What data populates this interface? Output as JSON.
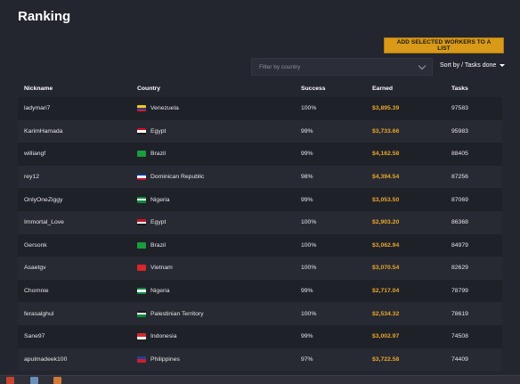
{
  "page": {
    "title": "Ranking"
  },
  "toolbar": {
    "add_button_label": "ADD SELECTED WORKERS TO A LIST",
    "filter_placeholder": "Filter by country",
    "sort_label": "Sort by / Tasks done"
  },
  "table": {
    "headers": {
      "nickname": "Nickname",
      "country": "Country",
      "success": "Success",
      "earned": "Earned",
      "tasks": "Tasks"
    },
    "rows": [
      {
        "nickname": "ladymari7",
        "country": "Venezuela",
        "success": "100%",
        "earned": "$3,895.39",
        "tasks": "97583"
      },
      {
        "nickname": "KarimHamada",
        "country": "Egypt",
        "success": "99%",
        "earned": "$3,733.66",
        "tasks": "95983"
      },
      {
        "nickname": "williangf",
        "country": "Brazil",
        "success": "99%",
        "earned": "$4,162.58",
        "tasks": "88405"
      },
      {
        "nickname": "rey12",
        "country": "Dominican Republic",
        "success": "98%",
        "earned": "$4,394.54",
        "tasks": "87256"
      },
      {
        "nickname": "OnlyOneZiggy",
        "country": "Nigeria",
        "success": "99%",
        "earned": "$3,053.50",
        "tasks": "87069"
      },
      {
        "nickname": "Immortal_Love",
        "country": "Egypt",
        "success": "100%",
        "earned": "$2,903.20",
        "tasks": "86368"
      },
      {
        "nickname": "Gersonk",
        "country": "Brazil",
        "success": "100%",
        "earned": "$3,062.94",
        "tasks": "84979"
      },
      {
        "nickname": "Asaetgv",
        "country": "Vietnam",
        "success": "100%",
        "earned": "$3,070.54",
        "tasks": "82629"
      },
      {
        "nickname": "Chornnie",
        "country": "Nigeria",
        "success": "99%",
        "earned": "$2,717.04",
        "tasks": "78799"
      },
      {
        "nickname": "ferasalghul",
        "country": "Palestinian Territory",
        "success": "100%",
        "earned": "$2,534.32",
        "tasks": "78619"
      },
      {
        "nickname": "Sane97",
        "country": "Indonesia",
        "success": "99%",
        "earned": "$3,002.97",
        "tasks": "74508"
      },
      {
        "nickname": "apulmadeek100",
        "country": "Philippines",
        "success": "97%",
        "earned": "$3,722.58",
        "tasks": "74409"
      }
    ]
  },
  "colors": {
    "accent": "#d89a18",
    "earned": "#e8a62a",
    "background": "#23252f"
  },
  "flag_icons": {
    "Venezuela": "venezuela-flag-icon",
    "Egypt": "egypt-flag-icon",
    "Brazil": "brazil-flag-icon",
    "Dominican Republic": "dominican-republic-flag-icon",
    "Nigeria": "nigeria-flag-icon",
    "Vietnam": "vietnam-flag-icon",
    "Palestinian Territory": "palestine-flag-icon",
    "Indonesia": "indonesia-flag-icon",
    "Philippines": "philippines-flag-icon"
  }
}
